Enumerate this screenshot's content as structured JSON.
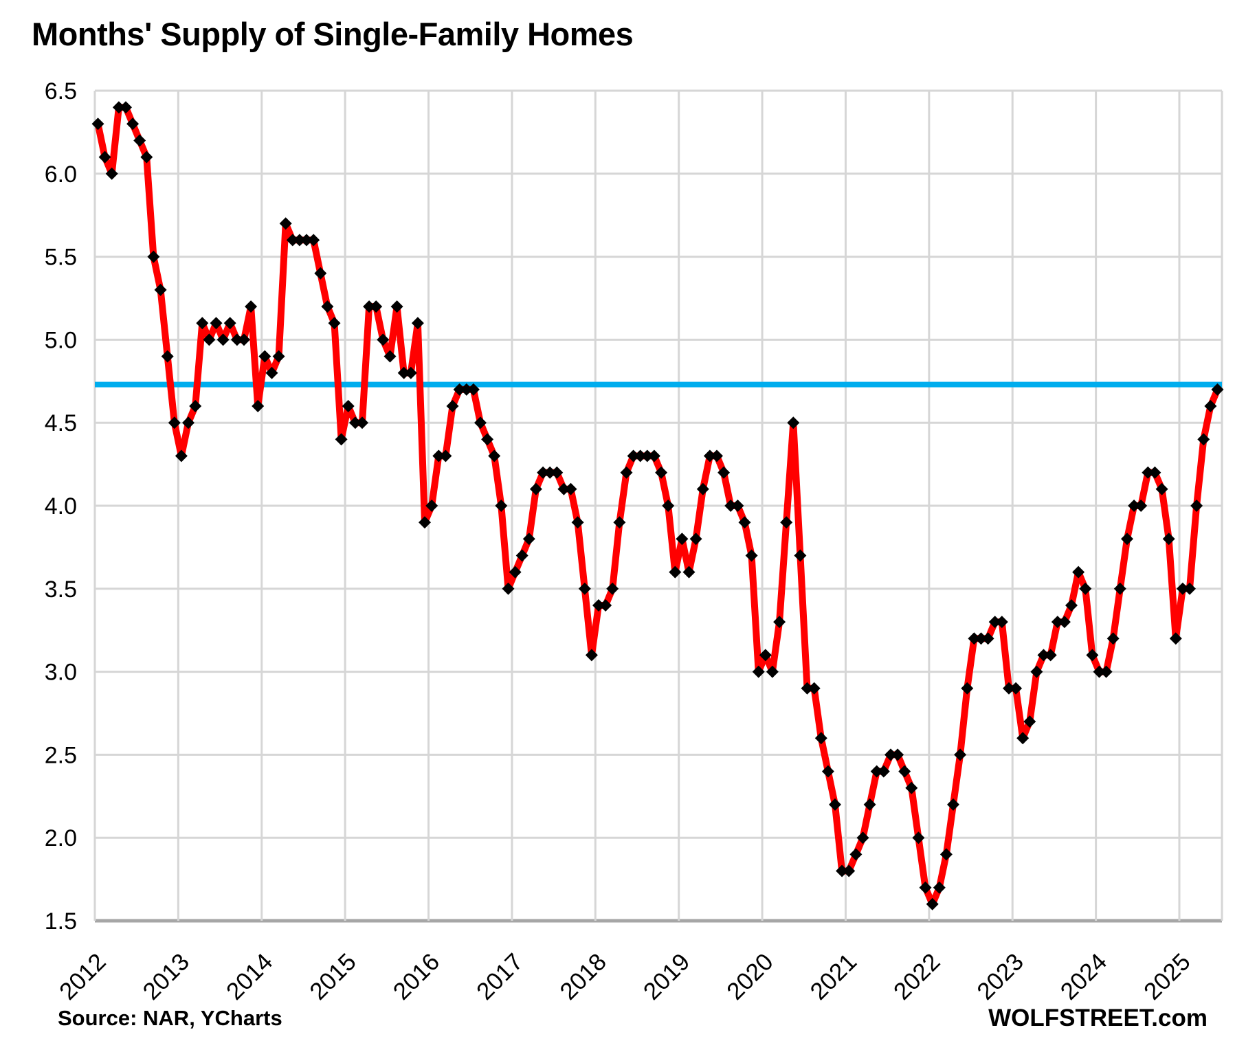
{
  "title": "Months' Supply of Single-Family Homes",
  "footer": {
    "source": "Source: NAR, YCharts",
    "branding": "WOLFSTREET.com"
  },
  "colors": {
    "series_line": "#FF0000",
    "marker": "#000000",
    "reference_line": "#00ADEE",
    "grid": "#D6D6D6",
    "axis": "#A6A6A6",
    "text": "#000000",
    "background": "#FFFFFF"
  },
  "chart_data": {
    "type": "line",
    "title": "Months' Supply of Single-Family Homes",
    "xlabel": "",
    "ylabel": "",
    "ylim": [
      1.5,
      6.5
    ],
    "y_tick_step": 0.5,
    "y_tick_labels": [
      "6.5",
      "6.0",
      "5.5",
      "5.0",
      "4.5",
      "4.0",
      "3.5",
      "3.0",
      "2.5",
      "2.0",
      "1.5"
    ],
    "x_tick_labels": [
      "2012",
      "2013",
      "2014",
      "2015",
      "2016",
      "2017",
      "2018",
      "2019",
      "2020",
      "2021",
      "2022",
      "2023",
      "2024",
      "2025"
    ],
    "grid": true,
    "legend": "none",
    "marker_shape": "diamond",
    "reference_line": {
      "value": 4.73,
      "label": ""
    },
    "start_month": "2012-01",
    "end_month": "2025-06",
    "series": [
      {
        "name": "Months' supply of single-family homes (monthly)",
        "years": [
          {
            "year": 2012,
            "values": [
              6.3,
              6.1,
              6.0,
              6.4,
              6.4,
              6.3,
              6.2,
              6.1,
              5.5,
              5.3,
              4.9,
              4.5
            ]
          },
          {
            "year": 2013,
            "values": [
              4.3,
              4.5,
              4.6,
              5.1,
              5.0,
              5.1,
              5.0,
              5.1,
              5.0,
              5.0,
              5.2,
              4.6
            ]
          },
          {
            "year": 2014,
            "values": [
              4.9,
              4.8,
              4.9,
              5.7,
              5.6,
              5.6,
              5.6,
              5.6,
              5.4,
              5.2,
              5.1,
              4.4
            ]
          },
          {
            "year": 2015,
            "values": [
              4.6,
              4.5,
              4.5,
              5.2,
              5.2,
              5.0,
              4.9,
              5.2,
              4.8,
              4.8,
              5.1,
              3.9
            ]
          },
          {
            "year": 2016,
            "values": [
              4.0,
              4.3,
              4.3,
              4.6,
              4.7,
              4.7,
              4.7,
              4.5,
              4.4,
              4.3,
              4.0,
              3.5
            ]
          },
          {
            "year": 2017,
            "values": [
              3.6,
              3.7,
              3.8,
              4.1,
              4.2,
              4.2,
              4.2,
              4.1,
              4.1,
              3.9,
              3.5,
              3.1
            ]
          },
          {
            "year": 2018,
            "values": [
              3.4,
              3.4,
              3.5,
              3.9,
              4.2,
              4.3,
              4.3,
              4.3,
              4.3,
              4.2,
              4.0,
              3.6
            ]
          },
          {
            "year": 2019,
            "values": [
              3.8,
              3.6,
              3.8,
              4.1,
              4.3,
              4.3,
              4.2,
              4.0,
              4.0,
              3.9,
              3.7,
              3.0
            ]
          },
          {
            "year": 2020,
            "values": [
              3.1,
              3.0,
              3.3,
              3.9,
              4.5,
              3.7,
              2.9,
              2.9,
              2.6,
              2.4,
              2.2,
              1.8
            ]
          },
          {
            "year": 2021,
            "values": [
              1.8,
              1.9,
              2.0,
              2.2,
              2.4,
              2.4,
              2.5,
              2.5,
              2.4,
              2.3,
              2.0,
              1.7
            ]
          },
          {
            "year": 2022,
            "values": [
              1.6,
              1.7,
              1.9,
              2.2,
              2.5,
              2.9,
              3.2,
              3.2,
              3.2,
              3.3,
              3.3,
              2.9
            ]
          },
          {
            "year": 2023,
            "values": [
              2.9,
              2.6,
              2.7,
              3.0,
              3.1,
              3.1,
              3.3,
              3.3,
              3.4,
              3.6,
              3.5,
              3.1
            ]
          },
          {
            "year": 2024,
            "values": [
              3.0,
              3.0,
              3.2,
              3.5,
              3.8,
              4.0,
              4.0,
              4.2,
              4.2,
              4.1,
              3.8,
              3.2
            ]
          },
          {
            "year": 2025,
            "values": [
              3.5,
              3.5,
              4.0,
              4.4,
              4.6,
              4.7
            ]
          }
        ]
      }
    ]
  }
}
